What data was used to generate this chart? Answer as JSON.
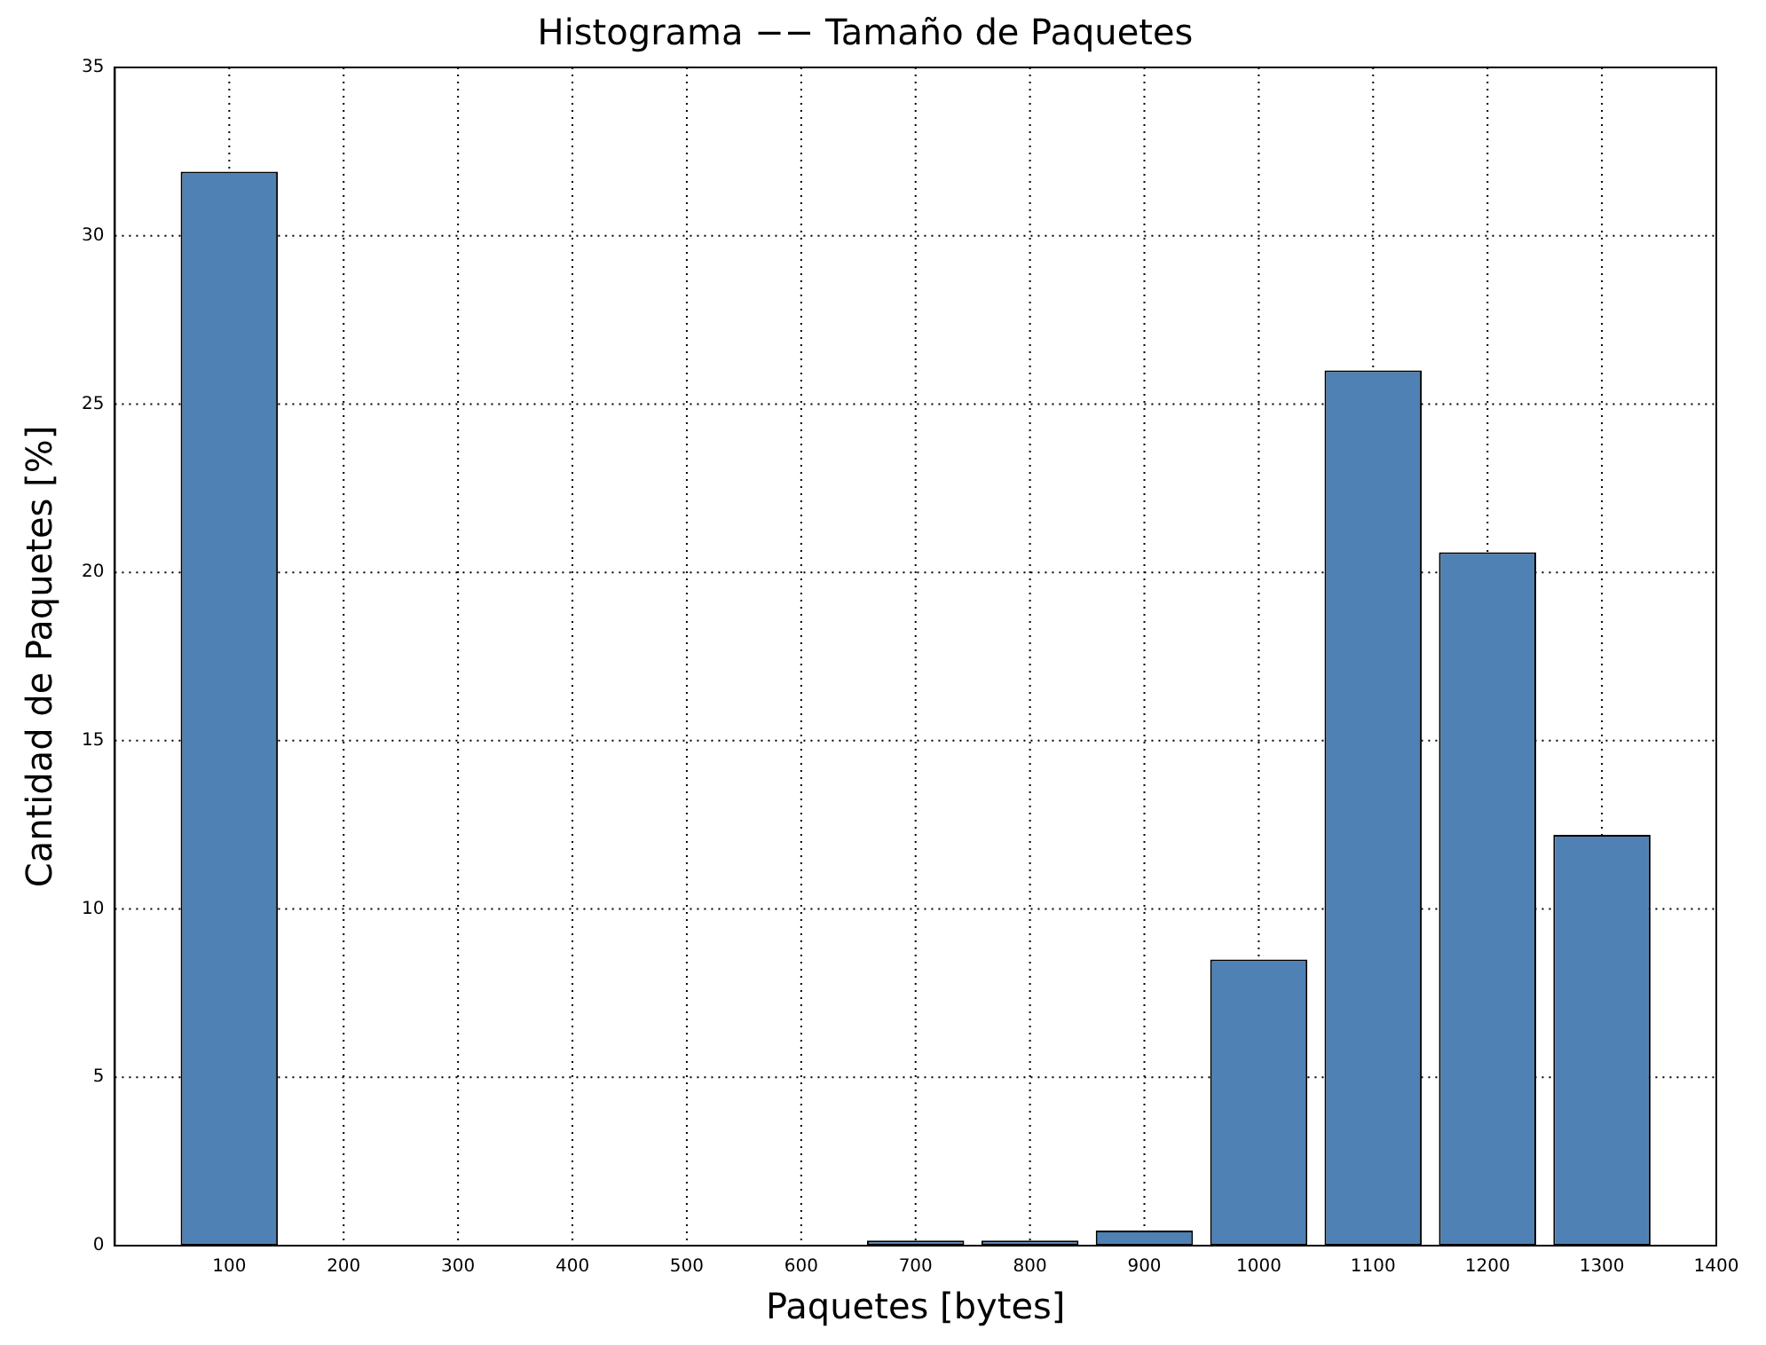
{
  "chart_data": {
    "type": "bar",
    "title": "Histograma −− Tamaño de Paquetes",
    "xlabel": "Paquetes [bytes]",
    "ylabel": "Cantidad de Paquetes [%]",
    "x": [
      100,
      200,
      300,
      400,
      500,
      600,
      700,
      800,
      900,
      1000,
      1100,
      1200,
      1300
    ],
    "values": [
      31.9,
      0,
      0,
      0,
      0,
      0,
      0.15,
      0.15,
      0.45,
      8.5,
      26.0,
      20.6,
      12.2
    ],
    "color": "#4f81b4",
    "xlim": [
      0,
      1400
    ],
    "xticks": [
      100,
      200,
      300,
      400,
      500,
      600,
      700,
      800,
      900,
      1000,
      1100,
      1200,
      1300,
      1400
    ],
    "ylim": [
      0,
      35
    ],
    "yticks": [
      0,
      5,
      10,
      15,
      20,
      25,
      30,
      35
    ],
    "grid": true,
    "legend": false
  }
}
